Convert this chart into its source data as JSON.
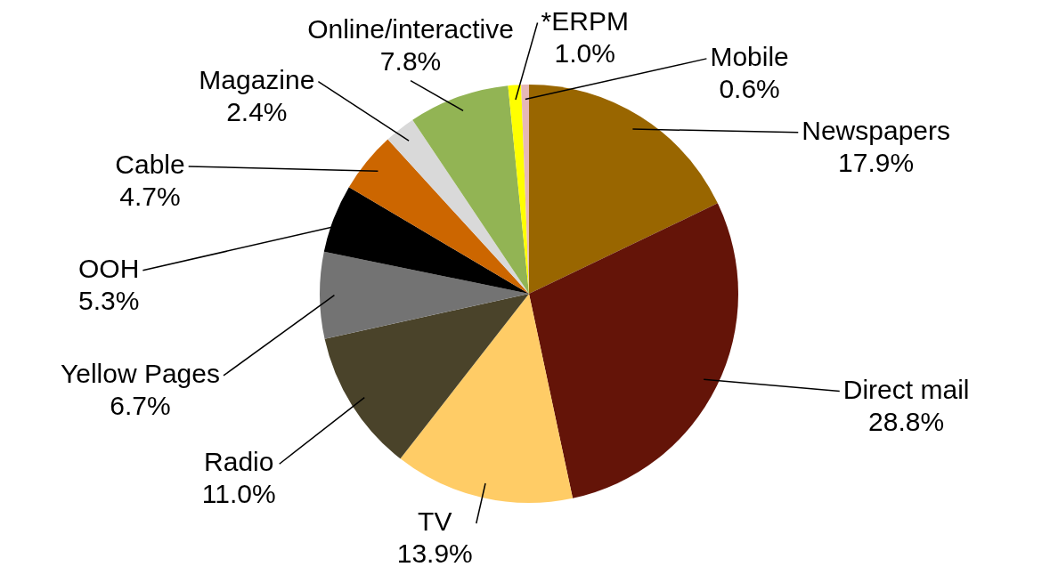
{
  "chart_data": {
    "type": "pie",
    "categories": [
      "Newspapers",
      "Direct mail",
      "TV",
      "Radio",
      "Yellow Pages",
      "OOH",
      "Cable",
      "Magazine",
      "Online/interactive",
      "*ERPM",
      "Mobile"
    ],
    "values": [
      17.9,
      28.8,
      13.9,
      11.0,
      6.7,
      5.3,
      4.7,
      2.4,
      7.8,
      1.0,
      0.6
    ],
    "colors": [
      "#996600",
      "#641408",
      "#ffcc66",
      "#4a432a",
      "#737373",
      "#000000",
      "#cc6600",
      "#d9d9d9",
      "#92b454",
      "#ffff00",
      "#e6b8b7"
    ],
    "value_labels": [
      "17.9%",
      "28.8%",
      "13.9%",
      "11.0%",
      "6.7%",
      "5.3%",
      "4.7%",
      "2.4%",
      "7.8%",
      "1.0%",
      "0.6%"
    ]
  }
}
